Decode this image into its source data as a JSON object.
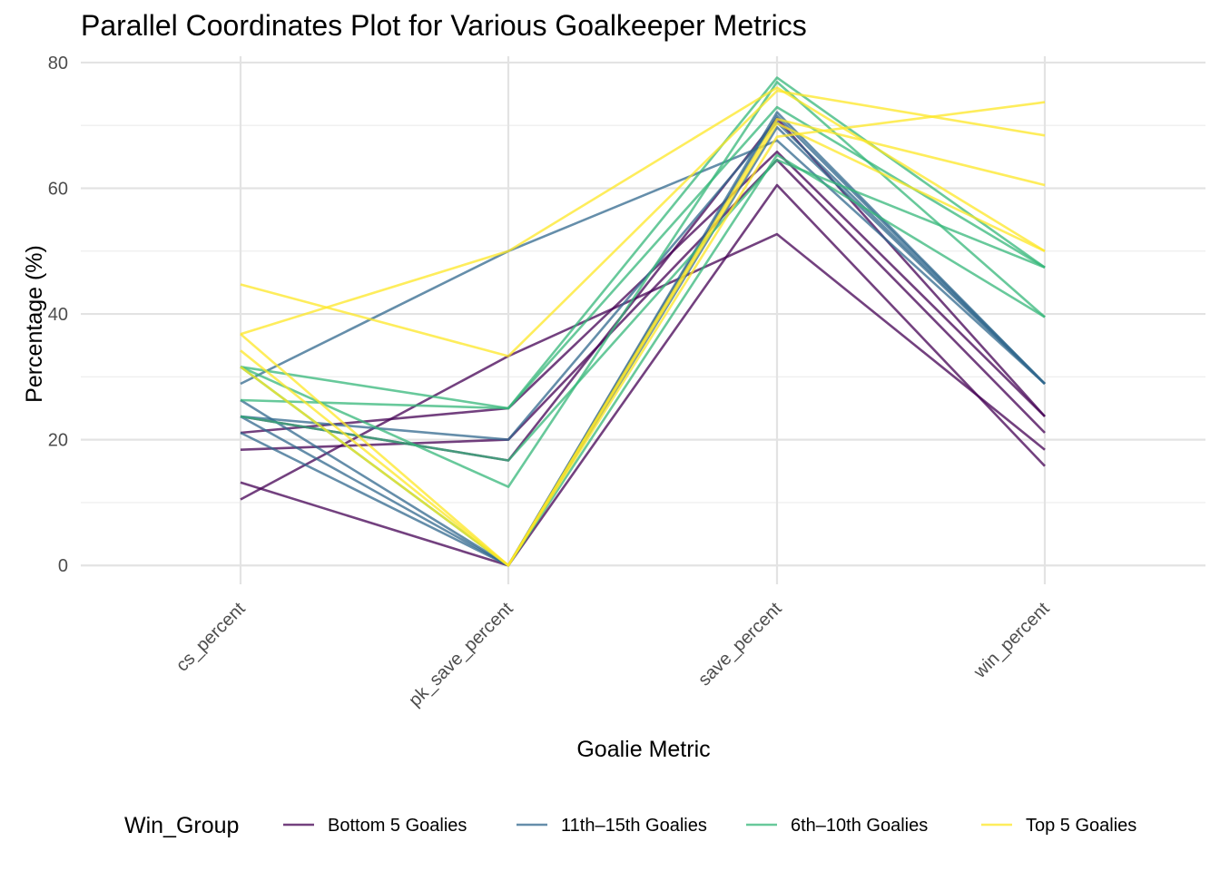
{
  "chart_data": {
    "type": "line",
    "subtype": "parallel-coordinates",
    "title": "Parallel Coordinates Plot for Various Goalkeeper Metrics",
    "xlabel": "Goalie Metric",
    "ylabel": "Percentage (%)",
    "categories": [
      "cs_percent",
      "pk_save_percent",
      "save_percent",
      "win_percent"
    ],
    "ylim": [
      -3,
      81
    ],
    "y_ticks": [
      "0",
      "20",
      "40",
      "60",
      "80"
    ],
    "grid": true,
    "legend_position": "bottom",
    "legend_title": "Win_Group",
    "groups": [
      {
        "name": "Bottom 5 Goalies",
        "color": "#440154"
      },
      {
        "name": "11th–15th Goalies",
        "color": "#31688E"
      },
      {
        "name": "6th–10th Goalies",
        "color": "#35B779"
      },
      {
        "name": "Top 5 Goalies",
        "color": "#FDE725"
      }
    ],
    "series": [
      {
        "group": "Bottom 5 Goalies",
        "values": [
          10.5,
          33.3,
          52.7,
          18.4
        ]
      },
      {
        "group": "Bottom 5 Goalies",
        "values": [
          13.2,
          0.0,
          60.5,
          15.8
        ]
      },
      {
        "group": "Bottom 5 Goalies",
        "values": [
          18.4,
          20.0,
          64.5,
          21.1
        ]
      },
      {
        "group": "Bottom 5 Goalies",
        "values": [
          21.1,
          25.0,
          65.8,
          23.7
        ]
      },
      {
        "group": "Bottom 5 Goalies",
        "values": [
          23.7,
          16.7,
          71.1,
          23.7
        ]
      },
      {
        "group": "11th–15th Goalies",
        "values": [
          28.9,
          50.0,
          67.6,
          28.9
        ]
      },
      {
        "group": "11th–15th Goalies",
        "values": [
          26.3,
          0.0,
          72.1,
          28.9
        ]
      },
      {
        "group": "11th–15th Goalies",
        "values": [
          23.7,
          20.0,
          70.5,
          28.9
        ]
      },
      {
        "group": "11th–15th Goalies",
        "values": [
          21.1,
          0.0,
          69.7,
          28.9
        ]
      },
      {
        "group": "11th–15th Goalies",
        "values": [
          23.7,
          0.0,
          71.5,
          28.9
        ]
      },
      {
        "group": "6th–10th Goalies",
        "values": [
          31.6,
          25.0,
          77.6,
          47.4
        ]
      },
      {
        "group": "6th–10th Goalies",
        "values": [
          26.3,
          25.0,
          72.9,
          47.4
        ]
      },
      {
        "group": "6th–10th Goalies",
        "values": [
          31.6,
          12.5,
          76.9,
          39.5
        ]
      },
      {
        "group": "6th–10th Goalies",
        "values": [
          23.7,
          16.7,
          64.5,
          47.4
        ]
      },
      {
        "group": "6th–10th Goalies",
        "values": [
          31.6,
          0.0,
          65.3,
          39.5
        ]
      },
      {
        "group": "Top 5 Goalies",
        "values": [
          44.7,
          33.3,
          75.5,
          68.4
        ]
      },
      {
        "group": "Top 5 Goalies",
        "values": [
          36.8,
          50.0,
          76.0,
          50.0
        ]
      },
      {
        "group": "Top 5 Goalies",
        "values": [
          36.8,
          0.0,
          68.2,
          73.7
        ]
      },
      {
        "group": "Top 5 Goalies",
        "values": [
          34.2,
          0.0,
          71.0,
          60.5
        ]
      },
      {
        "group": "Top 5 Goalies",
        "values": [
          31.6,
          0.0,
          70.3,
          50.0
        ]
      }
    ]
  }
}
